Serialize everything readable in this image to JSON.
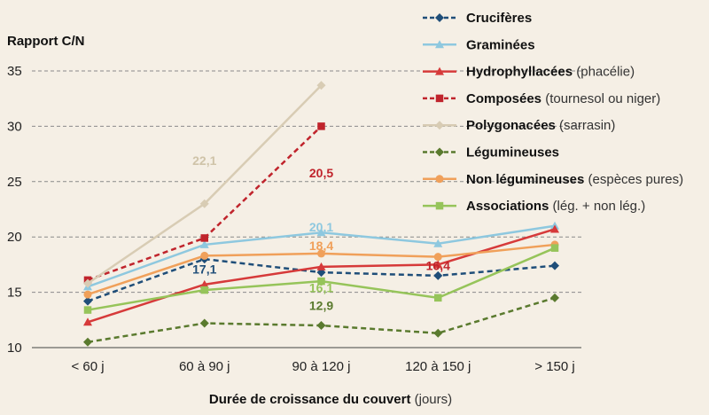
{
  "chart_data": {
    "type": "line",
    "ylabel": "Rapport C/N",
    "xlabel_bold": "Durée de croissance du couvert",
    "xlabel_rest": " (jours)",
    "categories": [
      "< 60 j",
      "60 à 90 j",
      "90 à 120 j",
      "120 à 150 j",
      "> 150 j"
    ],
    "ylim": [
      10,
      35
    ],
    "yticks": [
      "10",
      "15",
      "20",
      "25",
      "30",
      "35"
    ],
    "grid": "horizontal dashed",
    "legend_position": "top-right",
    "series": [
      {
        "name": "Crucifères",
        "note": "",
        "color": "#1f4e79",
        "dashed": true,
        "marker": "diamond",
        "values": [
          14.2,
          18.0,
          16.8,
          16.5,
          17.4
        ]
      },
      {
        "name": "Graminées",
        "note": "",
        "color": "#8ec8df",
        "dashed": false,
        "marker": "triangle",
        "values": [
          15.5,
          19.3,
          20.4,
          19.4,
          21.0
        ]
      },
      {
        "name": "Hydrophyllacées",
        "note": " (phacélie)",
        "color": "#d63a3a",
        "dashed": false,
        "marker": "triangle",
        "values": [
          12.3,
          15.7,
          17.3,
          17.5,
          20.7
        ]
      },
      {
        "name": "Composées",
        "note": " (tournesol ou niger)",
        "color": "#c0242c",
        "dashed": true,
        "marker": "square",
        "values": [
          16.1,
          19.9,
          30.0,
          null,
          null
        ]
      },
      {
        "name": "Polygonacées",
        "note": " (sarrasin)",
        "color": "#d8ccb4",
        "dashed": false,
        "marker": "diamond",
        "values": [
          15.8,
          23.0,
          33.7,
          null,
          null
        ]
      },
      {
        "name": "Légumineuses",
        "note": "",
        "color": "#5a7a2e",
        "dashed": true,
        "marker": "diamond",
        "values": [
          10.5,
          12.2,
          12.0,
          11.3,
          14.5
        ]
      },
      {
        "name": "Non légumineuses",
        "note": " (espèces pures)",
        "color": "#f0a05a",
        "dashed": false,
        "marker": "circle",
        "values": [
          14.8,
          18.3,
          18.5,
          18.2,
          19.3
        ]
      },
      {
        "name": "Associations",
        "note": " (lég. + non lég.)",
        "color": "#96c45a",
        "dashed": false,
        "marker": "square",
        "values": [
          13.4,
          15.2,
          16.0,
          14.5,
          19.0
        ]
      }
    ],
    "annotations": [
      {
        "text": "22,1",
        "color": "#cfc3a8",
        "x": "60 à 90 j",
        "y": 26.5
      },
      {
        "text": "20,5",
        "color": "#c0242c",
        "x": "90 à 120 j",
        "y": 25.4
      },
      {
        "text": "20,1",
        "color": "#8ec8df",
        "x": "90 à 120 j",
        "y": 20.5
      },
      {
        "text": "18,4",
        "color": "#f0a05a",
        "x": "90 à 120 j",
        "y": 18.8
      },
      {
        "text": "17,1",
        "color": "#1f4e79",
        "x": "60 à 90 j",
        "y": 16.7
      },
      {
        "text": "16,4",
        "color": "#c0242c",
        "x": "120 à 150 j",
        "y": 17.0
      },
      {
        "text": "16,1",
        "color": "#96c45a",
        "x": "90 à 120 j",
        "y": 15.0
      },
      {
        "text": "12,9",
        "color": "#5a7a2e",
        "x": "90 à 120 j",
        "y": 13.4
      }
    ]
  }
}
